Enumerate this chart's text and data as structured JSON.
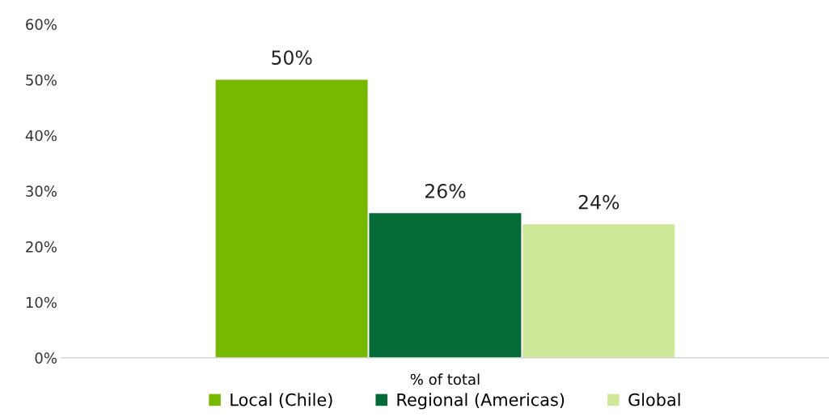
{
  "chart_data": {
    "type": "bar",
    "categories": [
      "% of total"
    ],
    "series": [
      {
        "name": "Local (Chile)",
        "color": "#76b900",
        "values": [
          50
        ],
        "value_labels": [
          "50%"
        ]
      },
      {
        "name": "Regional (Americas)",
        "color": "#046a38",
        "values": [
          26
        ],
        "value_labels": [
          "26%"
        ]
      },
      {
        "name": "Global",
        "color": "#d0e89a",
        "values": [
          24
        ],
        "value_labels": [
          "24%"
        ]
      }
    ],
    "ylim": [
      0,
      60
    ],
    "yticks": [
      {
        "value": 0,
        "label": "0%"
      },
      {
        "value": 10,
        "label": "10%"
      },
      {
        "value": 20,
        "label": "20%"
      },
      {
        "value": 30,
        "label": "30%"
      },
      {
        "value": 40,
        "label": "40%"
      },
      {
        "value": 50,
        "label": "50%"
      },
      {
        "value": 60,
        "label": "60%"
      }
    ],
    "grid": false,
    "legend": "bottom"
  }
}
